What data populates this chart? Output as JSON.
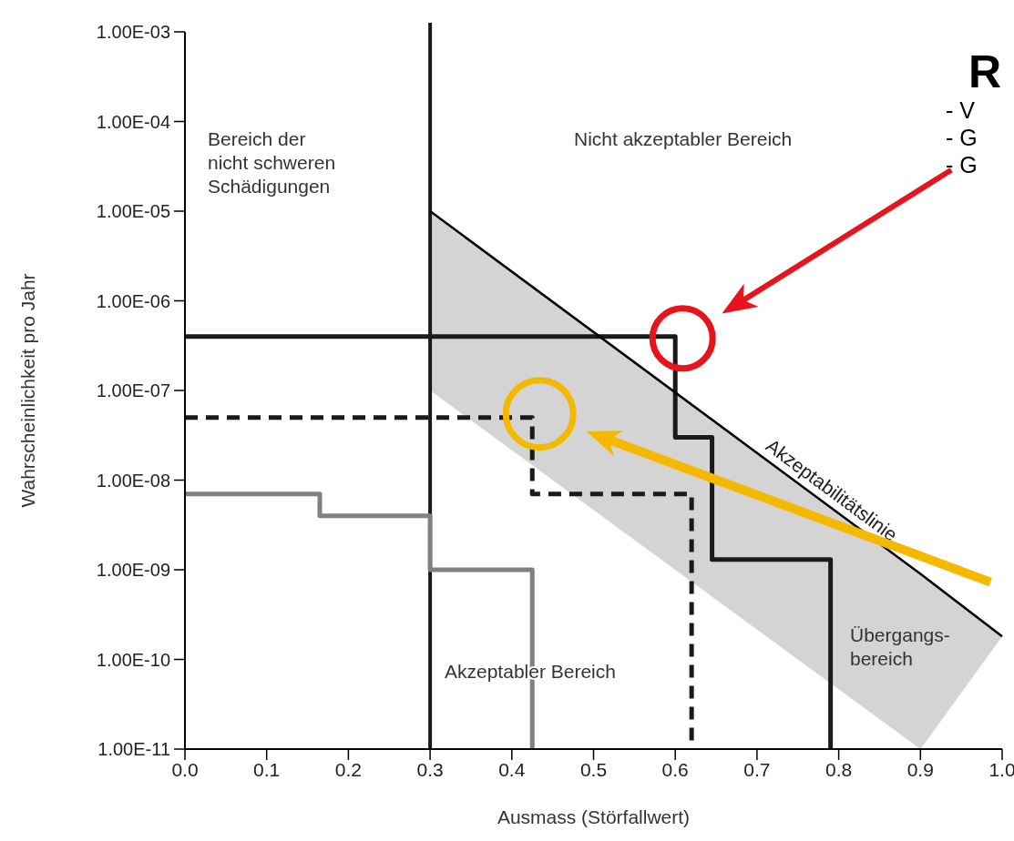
{
  "chart_data": {
    "type": "step",
    "xlabel": "Ausmass (Störfallwert)",
    "ylabel": "Wahrscheinlichkeit pro Jahr",
    "log": "y",
    "xlim": [
      0,
      1
    ],
    "xticks": [
      {
        "value": 0,
        "label": "0.0"
      },
      0.1,
      0.2,
      0.3,
      0.4,
      0.5,
      0.6,
      0.7,
      0.8,
      0.9,
      {
        "value": 1,
        "label": "1.0"
      }
    ],
    "ylim": [
      1e-11,
      0.001
    ],
    "yticks": [
      {
        "value": 0.001,
        "label": "1.00E-03"
      },
      {
        "value": 0.0001,
        "label": "1.00E-04"
      },
      {
        "value": 1e-05,
        "label": "1.00E-05"
      },
      {
        "value": 1e-06,
        "label": "1.00E-06"
      },
      {
        "value": 1e-07,
        "label": "1.00E-07"
      },
      {
        "value": 1e-08,
        "label": "1.00E-08"
      },
      {
        "value": 1e-09,
        "label": "1.00E-09"
      },
      {
        "value": 1e-10,
        "label": "1.00E-10"
      },
      {
        "value": 1e-11,
        "label": "1.00E-11"
      }
    ],
    "series": [
      {
        "color": "#1a1a1a",
        "x": [
          0,
          0.6,
          0.645,
          0.79
        ],
        "values": [
          4e-07,
          3e-08,
          1.3e-09,
          1e-11
        ]
      },
      {
        "color": "#1a1a1a",
        "line_style": "dashed",
        "x": [
          0,
          0.425,
          0.62
        ],
        "values": [
          5e-08,
          7e-09,
          1e-11
        ]
      },
      {
        "color": "#808080",
        "x": [
          0,
          0.165,
          0.3,
          0.425
        ],
        "values": [
          7e-09,
          4e-09,
          1e-09,
          1e-11
        ]
      },
      {
        "type": "line",
        "color": "#000000",
        "x": [
          0.3,
          0.9,
          1.0
        ],
        "values": [
          1e-05,
          9e-10,
          1.8e-10
        ],
        "lower": [
          1e-07,
          1e-11,
          1.8e-10
        ],
        "upper": [
          1e-05,
          9e-10,
          1.8e-10
        ]
      }
    ],
    "ref_lines": [
      {
        "axis": "x",
        "value": 0.3,
        "color": "#1a1a1a"
      }
    ],
    "annotations": [
      "Bereich der\nnicht schweren\nSchädigungen",
      "Nicht akzeptabler Bereich",
      {
        "text": "Akzeptabilitätslinie",
        "x": 0.78,
        "y": 5.6e-09
      },
      "Übergangs-\nbereich",
      "Akzeptabler Bereich",
      "R",
      "- V",
      "- G",
      "- G"
    ]
  }
}
